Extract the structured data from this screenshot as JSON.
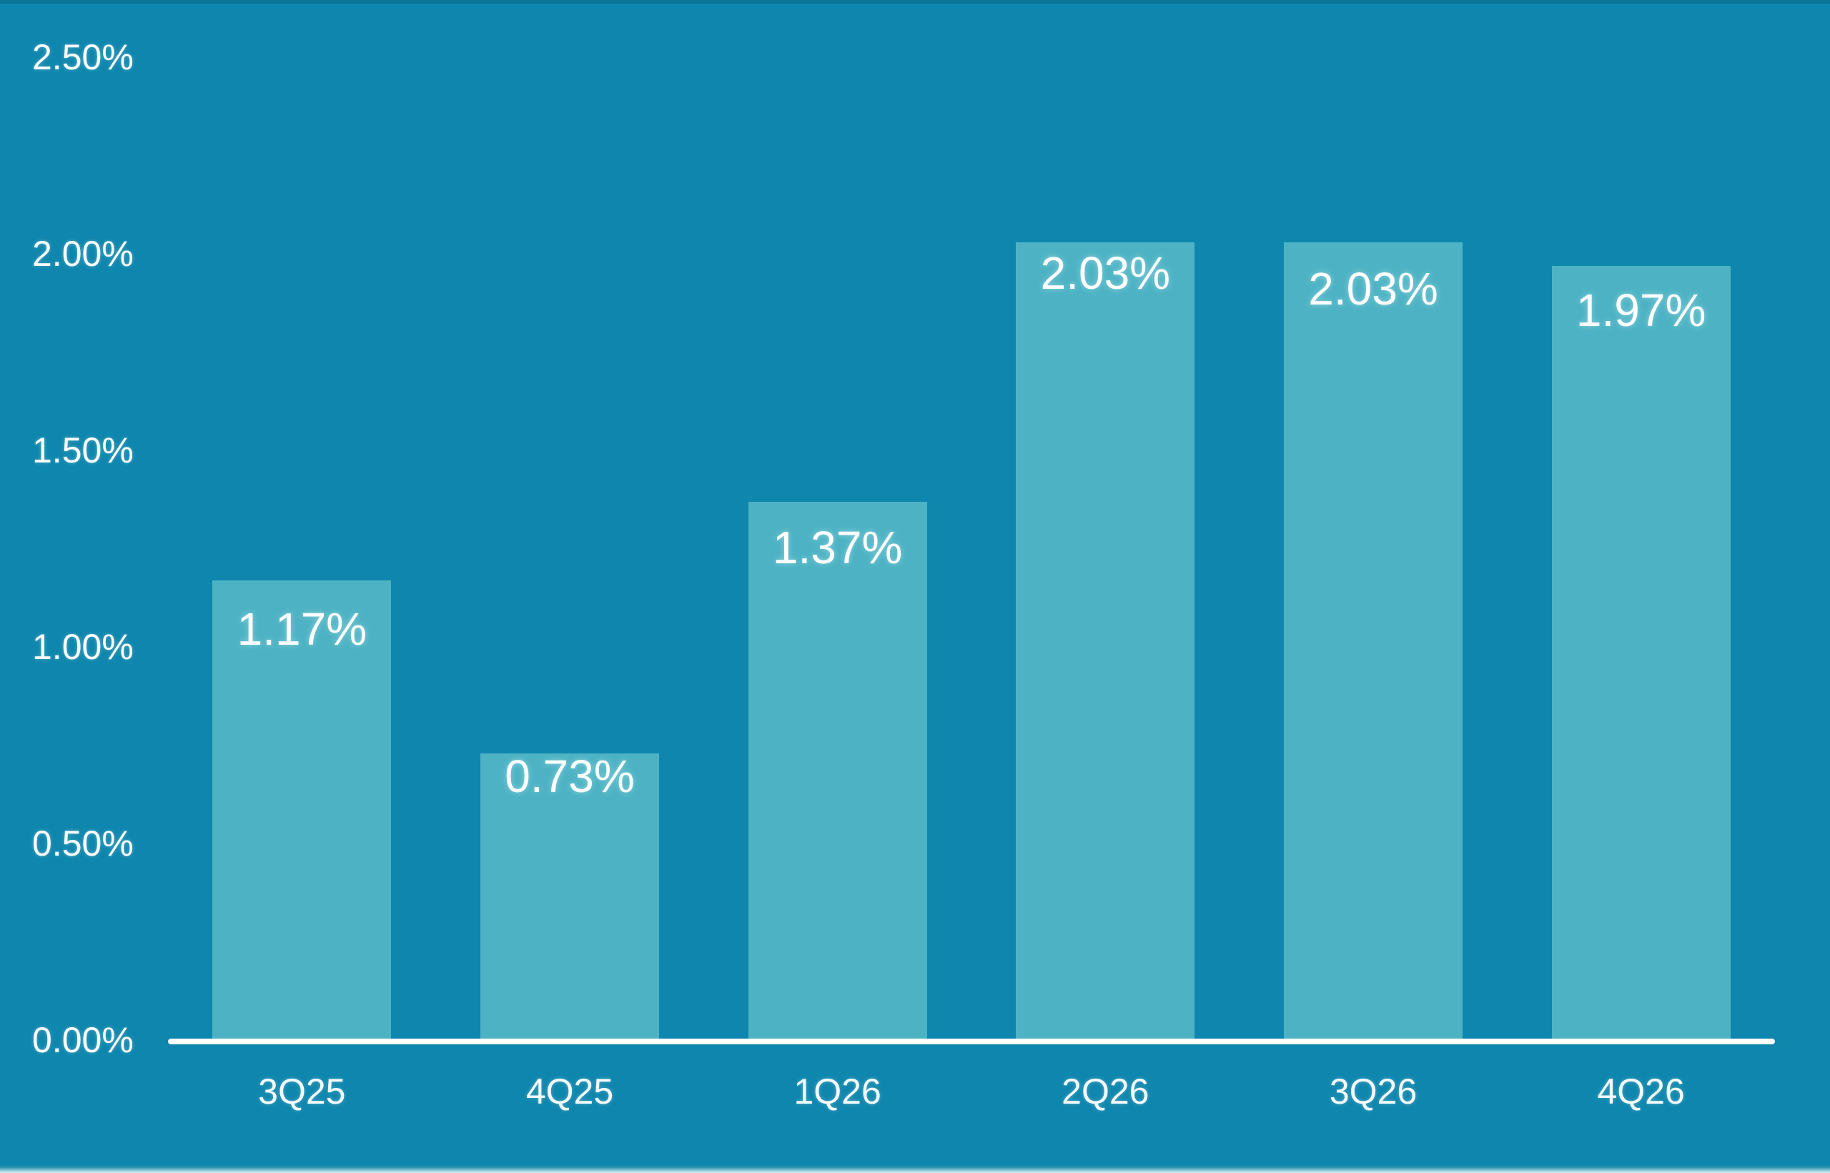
{
  "chart_data": {
    "type": "bar",
    "title": "",
    "xlabel": "",
    "ylabel": "",
    "categories": [
      "3Q25",
      "4Q25",
      "1Q26",
      "2Q26",
      "3Q26",
      "4Q26"
    ],
    "values": [
      1.17,
      0.73,
      1.37,
      2.03,
      2.03,
      1.97
    ],
    "data_labels": [
      "1.17%",
      "0.73%",
      "1.37%",
      "2.03%",
      "2.03%",
      "1.97%"
    ],
    "y_ticks": [
      {
        "value": 2.5,
        "label": "2.50%"
      },
      {
        "value": 2.0,
        "label": "2.00%"
      },
      {
        "value": 1.5,
        "label": "1.50%"
      },
      {
        "value": 1.0,
        "label": "1.00%"
      },
      {
        "value": 0.5,
        "label": "0.50%"
      },
      {
        "value": 0.0,
        "label": "0.00%"
      }
    ],
    "ylim": [
      0,
      2.5
    ],
    "grid": false,
    "legend": null,
    "colors": {
      "background": "#0E86AD",
      "bar": "#4DB3C4",
      "label_text": "#FFFFFF",
      "axis_text": "#FDFEFF",
      "baseline": "#FFFFFF"
    }
  }
}
